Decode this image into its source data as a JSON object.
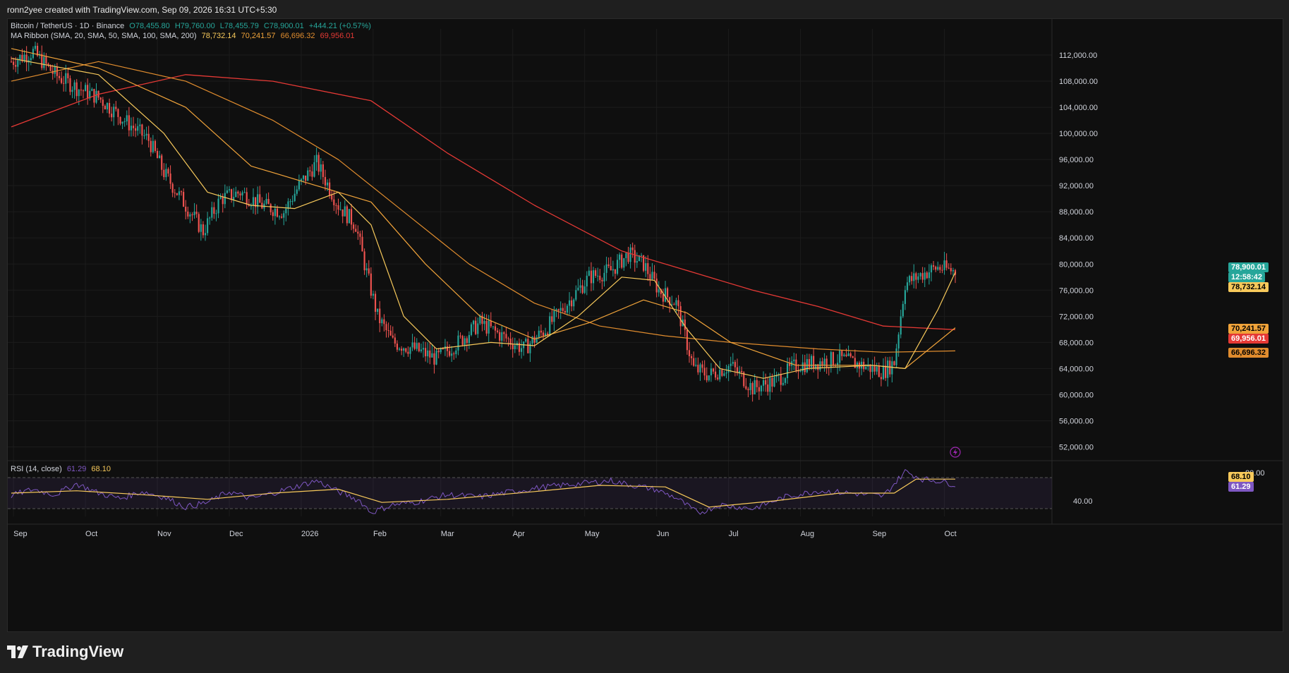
{
  "caption": "ronn2yee created with TradingView.com, Sep 09, 2026 16:31 UTC+5:30",
  "legend": {
    "symbol": "Bitcoin / TetherUS · 1D · Binance",
    "ohlc": {
      "o": "O78,455.80",
      "h": "H79,760.00",
      "l": "L78,455.79",
      "c": "C78,900.01",
      "chg": "+444.21 (+0.57%)"
    },
    "ma_name": "MA Ribbon (SMA, 20, SMA, 50, SMA, 100, SMA, 200)",
    "ma_values": [
      "78,732.14",
      "70,241.57",
      "66,696.32",
      "69,956.01"
    ]
  },
  "rsi_legend": {
    "name": "RSI (14, close)",
    "v1": "61.29",
    "v2": "68.10"
  },
  "footer_brand": "TradingView",
  "price_tags": {
    "last": "78,900.01",
    "countdown": "12:58:42",
    "sma20": "78,732.14",
    "sma50": "70,241.57",
    "sma200": "69,956.01",
    "sma100": "66,696.32",
    "rsi_ma": "68.10",
    "rsi": "61.29",
    "rsi_top": "80.00"
  },
  "colors": {
    "up": "#26a69a",
    "down": "#ef5350",
    "sma20": "#f7c95b",
    "sma50": "#f0a33a",
    "sma100": "#e08c2e",
    "sma200": "#e53935",
    "rsi": "#7e57c2",
    "rsi_ma": "#f7c95b",
    "bg": "#0f0f0f",
    "grid": "#1c1c1c"
  },
  "chart_data": {
    "type": "candlestick",
    "y_axis_ticks": [
      "112,000.00",
      "108,000.00",
      "104,000.00",
      "100,000.00",
      "96,000.00",
      "92,000.00",
      "88,000.00",
      "84,000.00",
      "80,000.00",
      "76,000.00",
      "72,000.00",
      "68,000.00",
      "64,000.00",
      "60,000.00",
      "56,000.00",
      "52,000.00"
    ],
    "ylim": [
      50000,
      116000
    ],
    "x_axis_ticks": [
      "Sep",
      "Oct",
      "Nov",
      "Dec",
      "2026",
      "Feb",
      "Mar",
      "Apr",
      "May",
      "Jun",
      "Jul",
      "Aug",
      "Sep",
      "Oct"
    ],
    "rsi_ticks": [
      "40.00"
    ],
    "rsi_ylim": [
      20,
      90
    ],
    "price_path": [
      [
        0,
        111000
      ],
      [
        10,
        112500
      ],
      [
        20,
        109000
      ],
      [
        30,
        107000
      ],
      [
        40,
        105500
      ],
      [
        52,
        102000
      ],
      [
        63,
        99000
      ],
      [
        70,
        94000
      ],
      [
        80,
        89000
      ],
      [
        88,
        85000
      ],
      [
        96,
        90000
      ],
      [
        105,
        91000
      ],
      [
        115,
        89000
      ],
      [
        125,
        88000
      ],
      [
        132,
        92000
      ],
      [
        140,
        95500
      ],
      [
        150,
        89000
      ],
      [
        158,
        86000
      ],
      [
        162,
        80000
      ],
      [
        168,
        72000
      ],
      [
        175,
        68000
      ],
      [
        185,
        67000
      ],
      [
        195,
        65500
      ],
      [
        205,
        68000
      ],
      [
        215,
        71000
      ],
      [
        225,
        69000
      ],
      [
        235,
        67000
      ],
      [
        245,
        70000
      ],
      [
        255,
        74000
      ],
      [
        265,
        78000
      ],
      [
        275,
        79000
      ],
      [
        283,
        81500
      ],
      [
        290,
        80000
      ],
      [
        297,
        76000
      ],
      [
        305,
        74000
      ],
      [
        313,
        64000
      ],
      [
        320,
        63000
      ],
      [
        330,
        64500
      ],
      [
        340,
        61000
      ],
      [
        350,
        62000
      ],
      [
        360,
        64500
      ],
      [
        370,
        65000
      ],
      [
        380,
        65500
      ],
      [
        390,
        64500
      ],
      [
        400,
        63500
      ],
      [
        405,
        65000
      ],
      [
        410,
        77000
      ],
      [
        418,
        78500
      ],
      [
        425,
        79500
      ],
      [
        433,
        78900
      ]
    ],
    "sma20_path": [
      [
        0,
        111500
      ],
      [
        40,
        109000
      ],
      [
        70,
        100000
      ],
      [
        90,
        91000
      ],
      [
        110,
        89000
      ],
      [
        130,
        88500
      ],
      [
        150,
        91000
      ],
      [
        165,
        86000
      ],
      [
        180,
        72000
      ],
      [
        195,
        67000
      ],
      [
        220,
        68000
      ],
      [
        240,
        67500
      ],
      [
        260,
        72000
      ],
      [
        280,
        78000
      ],
      [
        295,
        77500
      ],
      [
        310,
        70000
      ],
      [
        325,
        64000
      ],
      [
        345,
        62500
      ],
      [
        365,
        64000
      ],
      [
        395,
        64500
      ],
      [
        410,
        64000
      ],
      [
        425,
        73000
      ],
      [
        433,
        78732
      ]
    ],
    "sma50_path": [
      [
        0,
        113000
      ],
      [
        40,
        110000
      ],
      [
        80,
        104000
      ],
      [
        110,
        95000
      ],
      [
        140,
        92000
      ],
      [
        165,
        89500
      ],
      [
        190,
        80000
      ],
      [
        215,
        72000
      ],
      [
        240,
        68500
      ],
      [
        265,
        71000
      ],
      [
        290,
        74500
      ],
      [
        310,
        72500
      ],
      [
        330,
        68000
      ],
      [
        360,
        64500
      ],
      [
        395,
        64500
      ],
      [
        410,
        64000
      ],
      [
        433,
        70241
      ]
    ],
    "sma100_path": [
      [
        0,
        108000
      ],
      [
        40,
        111000
      ],
      [
        80,
        108000
      ],
      [
        120,
        102000
      ],
      [
        150,
        96000
      ],
      [
        180,
        88000
      ],
      [
        210,
        80000
      ],
      [
        240,
        74000
      ],
      [
        270,
        70500
      ],
      [
        300,
        69000
      ],
      [
        330,
        68000
      ],
      [
        370,
        67000
      ],
      [
        400,
        66500
      ],
      [
        433,
        66696
      ]
    ],
    "sma200_path": [
      [
        0,
        101000
      ],
      [
        40,
        106000
      ],
      [
        80,
        109000
      ],
      [
        120,
        108000
      ],
      [
        165,
        105000
      ],
      [
        200,
        97000
      ],
      [
        240,
        89000
      ],
      [
        280,
        82000
      ],
      [
        310,
        79000
      ],
      [
        340,
        76000
      ],
      [
        370,
        73500
      ],
      [
        400,
        70500
      ],
      [
        433,
        69956
      ]
    ],
    "rsi_path": [
      [
        0,
        47
      ],
      [
        10,
        55
      ],
      [
        20,
        48
      ],
      [
        30,
        62
      ],
      [
        40,
        50
      ],
      [
        50,
        43
      ],
      [
        60,
        52
      ],
      [
        70,
        45
      ],
      [
        80,
        32
      ],
      [
        90,
        38
      ],
      [
        100,
        52
      ],
      [
        110,
        43
      ],
      [
        120,
        50
      ],
      [
        130,
        58
      ],
      [
        140,
        66
      ],
      [
        150,
        52
      ],
      [
        160,
        40
      ],
      [
        165,
        25
      ],
      [
        175,
        35
      ],
      [
        185,
        38
      ],
      [
        200,
        48
      ],
      [
        215,
        45
      ],
      [
        230,
        52
      ],
      [
        245,
        58
      ],
      [
        260,
        62
      ],
      [
        275,
        66
      ],
      [
        285,
        60
      ],
      [
        295,
        55
      ],
      [
        305,
        44
      ],
      [
        315,
        24
      ],
      [
        325,
        35
      ],
      [
        340,
        30
      ],
      [
        355,
        45
      ],
      [
        370,
        53
      ],
      [
        385,
        50
      ],
      [
        400,
        46
      ],
      [
        410,
        78
      ],
      [
        418,
        68
      ],
      [
        425,
        66
      ],
      [
        433,
        61
      ]
    ],
    "rsi_ma_path": [
      [
        0,
        50
      ],
      [
        30,
        53
      ],
      [
        60,
        48
      ],
      [
        90,
        42
      ],
      [
        120,
        50
      ],
      [
        150,
        55
      ],
      [
        170,
        38
      ],
      [
        200,
        42
      ],
      [
        240,
        52
      ],
      [
        270,
        60
      ],
      [
        300,
        58
      ],
      [
        320,
        32
      ],
      [
        350,
        40
      ],
      [
        380,
        50
      ],
      [
        405,
        50
      ],
      [
        415,
        68
      ],
      [
        433,
        68
      ]
    ]
  }
}
